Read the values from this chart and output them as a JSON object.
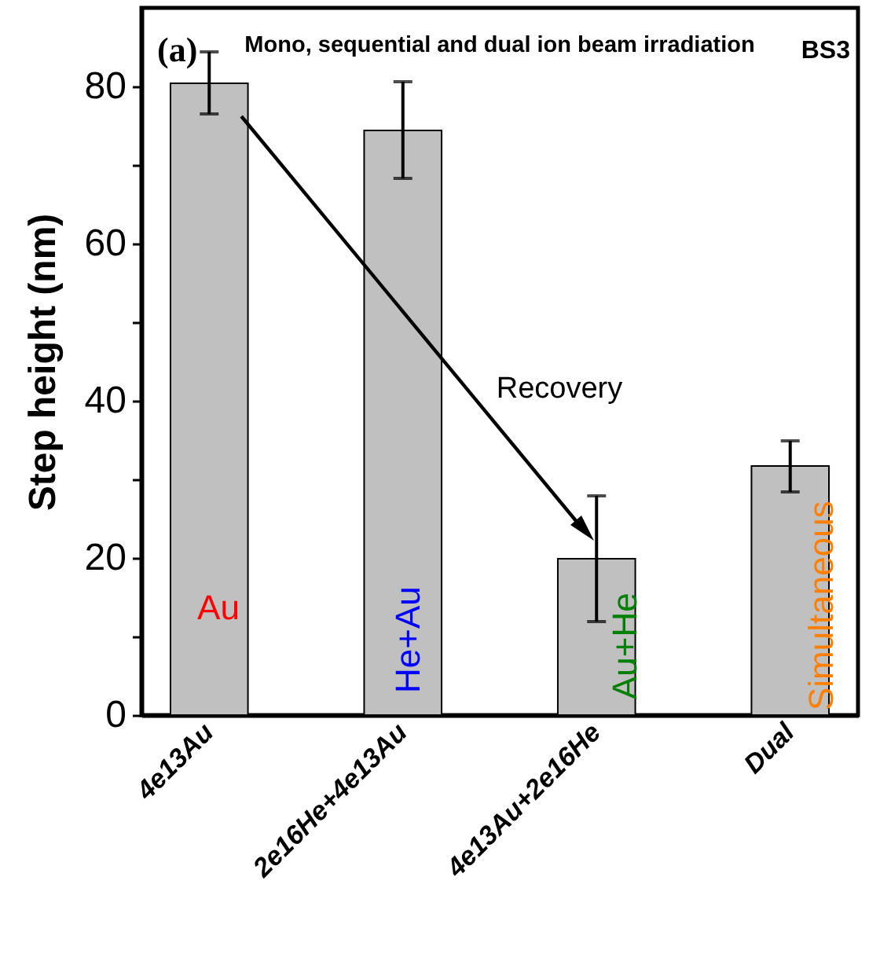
{
  "chart_data": {
    "type": "bar",
    "title": "Mono, sequential and dual ion beam irradiation",
    "ylabel": "Step height (nm)",
    "categories": [
      "4e13Au",
      "2e16He+4e13Au",
      "4e13Au+2e16He",
      "Dual"
    ],
    "values": [
      80.4,
      74.4,
      19.9,
      31.7
    ],
    "color": "#c0c0c0",
    "errors": [
      [
        76.5,
        84.4
      ],
      [
        68.3,
        80.6
      ],
      [
        11.9,
        27.9
      ],
      [
        28.4,
        34.9
      ]
    ],
    "ylim": [
      0,
      90
    ],
    "yticks": [
      0,
      {
        "value": 10,
        "label": null
      },
      20,
      {
        "value": 30,
        "label": null
      },
      40,
      {
        "value": 50,
        "label": null
      },
      60,
      {
        "value": 70,
        "label": null
      },
      80
    ],
    "grid": false,
    "annotations": [
      "(a)",
      "BS3",
      "Recovery",
      "Au",
      "He+Au",
      "Au+He",
      "Simultaneous"
    ]
  }
}
